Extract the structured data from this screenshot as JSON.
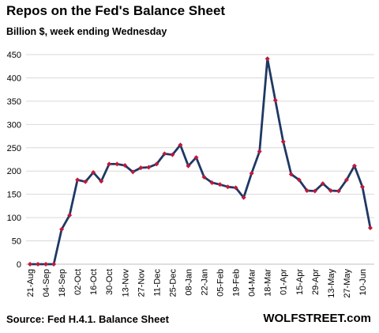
{
  "chart_data": {
    "type": "line",
    "title": "Repos on the Fed's Balance Sheet",
    "subtitle": "Billion $, week ending Wednesday",
    "xlabel": "",
    "ylabel": "",
    "ylim": [
      0,
      450
    ],
    "yticks": [
      0,
      50,
      100,
      150,
      200,
      250,
      300,
      350,
      400,
      450
    ],
    "grid": true,
    "line_color": "#1f3864",
    "marker_color": "#c0193a",
    "xtick_labels": [
      "21-Aug",
      "04-Sep",
      "18-Sep",
      "02-Oct",
      "16-Oct",
      "30-Oct",
      "13-Nov",
      "27-Nov",
      "11-Dec",
      "25-Dec",
      "08-Jan",
      "22-Jan",
      "05-Feb",
      "19-Feb",
      "04-Mar",
      "18-Mar",
      "01-Apr",
      "15-Apr",
      "29-Apr",
      "13-May",
      "27-May",
      "10-Jun"
    ],
    "x": [
      "21-Aug",
      "28-Aug",
      "04-Sep",
      "11-Sep",
      "18-Sep",
      "25-Sep",
      "02-Oct",
      "09-Oct",
      "16-Oct",
      "23-Oct",
      "30-Oct",
      "06-Nov",
      "13-Nov",
      "20-Nov",
      "27-Nov",
      "04-Dec",
      "11-Dec",
      "18-Dec",
      "25-Dec",
      "01-Jan",
      "08-Jan",
      "15-Jan",
      "22-Jan",
      "29-Jan",
      "05-Feb",
      "12-Feb",
      "19-Feb",
      "26-Feb",
      "04-Mar",
      "11-Mar",
      "18-Mar",
      "25-Mar",
      "01-Apr",
      "08-Apr",
      "15-Apr",
      "22-Apr",
      "29-Apr",
      "06-May",
      "13-May",
      "20-May",
      "27-May",
      "03-Jun",
      "10-Jun",
      "17-Jun"
    ],
    "values": [
      0,
      0,
      0,
      0,
      75,
      105,
      181,
      177,
      197,
      178,
      215,
      215,
      212,
      198,
      207,
      208,
      215,
      237,
      235,
      256,
      211,
      229,
      187,
      175,
      171,
      166,
      164,
      143,
      195,
      242,
      441,
      352,
      263,
      193,
      181,
      158,
      157,
      173,
      158,
      157,
      181,
      211,
      166,
      78
    ]
  },
  "footer": {
    "source": "Source: Fed H.4.1. Balance Sheet",
    "brand": "WOLFSTREET.com"
  }
}
